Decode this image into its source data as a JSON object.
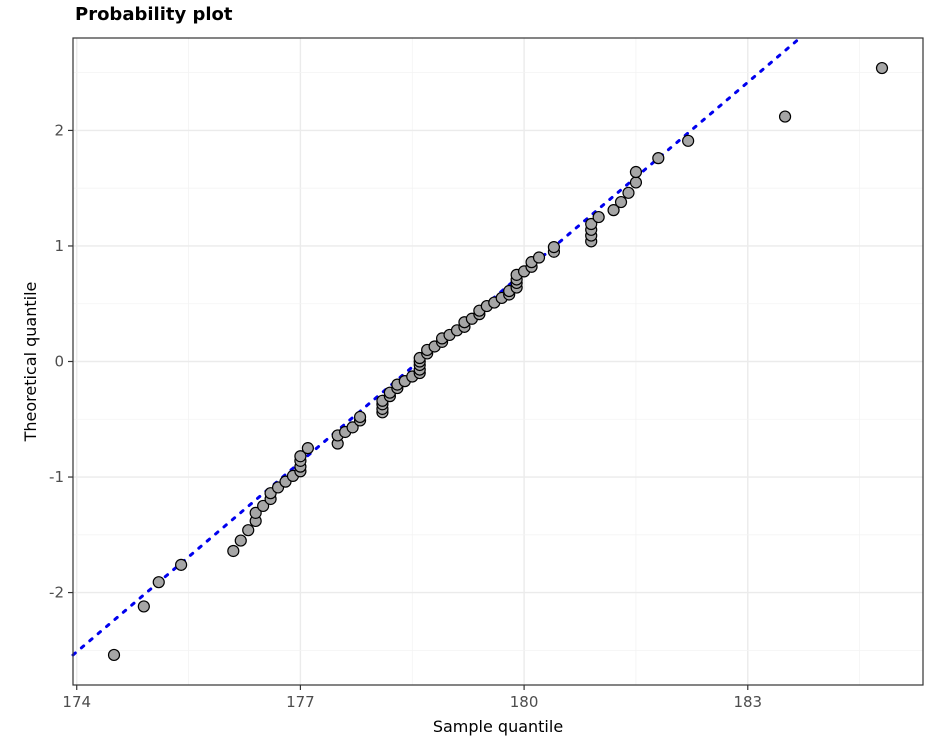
{
  "chart_data": {
    "type": "scatter",
    "title": "Probability plot",
    "xlabel": "Sample quantile",
    "ylabel": "Theoretical quantile",
    "xlim": [
      173.95,
      185.35
    ],
    "ylim": [
      -2.8,
      2.8
    ],
    "x_ticks": [
      174,
      177,
      180,
      183
    ],
    "y_ticks": [
      -2,
      -1,
      0,
      1,
      2
    ],
    "grid": true,
    "reference_line": {
      "style": "dotted",
      "color": "#0000ee",
      "x": [
        173.95,
        183.7
      ],
      "y": [
        -2.54,
        2.8
      ]
    },
    "point_fill": "#a6a6a6",
    "points": [
      {
        "x": 174.5,
        "y": -2.54
      },
      {
        "x": 174.9,
        "y": -2.12
      },
      {
        "x": 175.1,
        "y": -1.91
      },
      {
        "x": 175.4,
        "y": -1.76
      },
      {
        "x": 176.1,
        "y": -1.64
      },
      {
        "x": 176.2,
        "y": -1.55
      },
      {
        "x": 176.3,
        "y": -1.46
      },
      {
        "x": 176.4,
        "y": -1.38
      },
      {
        "x": 176.4,
        "y": -1.31
      },
      {
        "x": 176.5,
        "y": -1.25
      },
      {
        "x": 176.6,
        "y": -1.19
      },
      {
        "x": 176.6,
        "y": -1.14
      },
      {
        "x": 176.7,
        "y": -1.09
      },
      {
        "x": 176.8,
        "y": -1.04
      },
      {
        "x": 176.9,
        "y": -0.99
      },
      {
        "x": 177.0,
        "y": -0.95
      },
      {
        "x": 177.0,
        "y": -0.91
      },
      {
        "x": 177.0,
        "y": -0.86
      },
      {
        "x": 177.0,
        "y": -0.82
      },
      {
        "x": 177.1,
        "y": -0.75
      },
      {
        "x": 177.5,
        "y": -0.71
      },
      {
        "x": 177.5,
        "y": -0.64
      },
      {
        "x": 177.6,
        "y": -0.61
      },
      {
        "x": 177.7,
        "y": -0.57
      },
      {
        "x": 177.8,
        "y": -0.51
      },
      {
        "x": 177.8,
        "y": -0.48
      },
      {
        "x": 178.1,
        "y": -0.44
      },
      {
        "x": 178.1,
        "y": -0.41
      },
      {
        "x": 178.1,
        "y": -0.37
      },
      {
        "x": 178.1,
        "y": -0.34
      },
      {
        "x": 178.2,
        "y": -0.3
      },
      {
        "x": 178.2,
        "y": -0.27
      },
      {
        "x": 178.3,
        "y": -0.23
      },
      {
        "x": 178.3,
        "y": -0.2
      },
      {
        "x": 178.4,
        "y": -0.17
      },
      {
        "x": 178.5,
        "y": -0.13
      },
      {
        "x": 178.6,
        "y": -0.1
      },
      {
        "x": 178.6,
        "y": -0.07
      },
      {
        "x": 178.6,
        "y": -0.03
      },
      {
        "x": 178.6,
        "y": 0.0
      },
      {
        "x": 178.6,
        "y": 0.03
      },
      {
        "x": 178.7,
        "y": 0.07
      },
      {
        "x": 178.7,
        "y": 0.1
      },
      {
        "x": 178.8,
        "y": 0.13
      },
      {
        "x": 178.9,
        "y": 0.17
      },
      {
        "x": 178.9,
        "y": 0.2
      },
      {
        "x": 179.0,
        "y": 0.23
      },
      {
        "x": 179.1,
        "y": 0.27
      },
      {
        "x": 179.2,
        "y": 0.3
      },
      {
        "x": 179.2,
        "y": 0.34
      },
      {
        "x": 179.3,
        "y": 0.37
      },
      {
        "x": 179.4,
        "y": 0.41
      },
      {
        "x": 179.4,
        "y": 0.44
      },
      {
        "x": 179.5,
        "y": 0.48
      },
      {
        "x": 179.6,
        "y": 0.51
      },
      {
        "x": 179.7,
        "y": 0.55
      },
      {
        "x": 179.8,
        "y": 0.58
      },
      {
        "x": 179.8,
        "y": 0.61
      },
      {
        "x": 179.9,
        "y": 0.64
      },
      {
        "x": 179.9,
        "y": 0.68
      },
      {
        "x": 179.9,
        "y": 0.71
      },
      {
        "x": 179.9,
        "y": 0.75
      },
      {
        "x": 180.0,
        "y": 0.78
      },
      {
        "x": 180.1,
        "y": 0.82
      },
      {
        "x": 180.1,
        "y": 0.86
      },
      {
        "x": 180.2,
        "y": 0.9
      },
      {
        "x": 180.4,
        "y": 0.95
      },
      {
        "x": 180.4,
        "y": 0.99
      },
      {
        "x": 180.9,
        "y": 1.04
      },
      {
        "x": 180.9,
        "y": 1.09
      },
      {
        "x": 180.9,
        "y": 1.14
      },
      {
        "x": 180.9,
        "y": 1.19
      },
      {
        "x": 181.0,
        "y": 1.25
      },
      {
        "x": 181.2,
        "y": 1.31
      },
      {
        "x": 181.3,
        "y": 1.38
      },
      {
        "x": 181.4,
        "y": 1.46
      },
      {
        "x": 181.5,
        "y": 1.55
      },
      {
        "x": 181.5,
        "y": 1.64
      },
      {
        "x": 181.8,
        "y": 1.76
      },
      {
        "x": 182.2,
        "y": 1.91
      },
      {
        "x": 183.5,
        "y": 2.12
      },
      {
        "x": 184.8,
        "y": 2.54
      }
    ]
  }
}
